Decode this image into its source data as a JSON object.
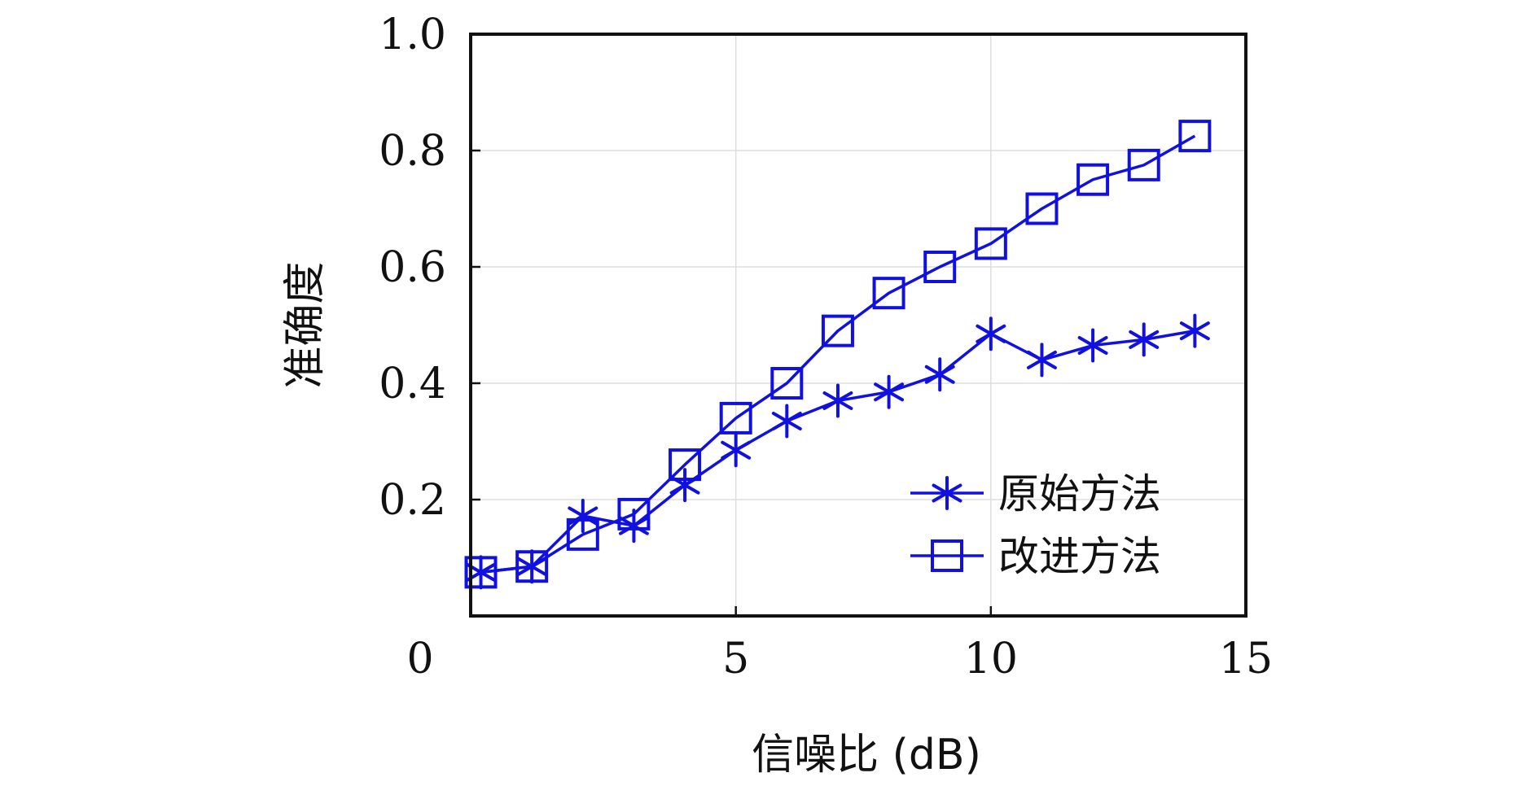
{
  "chart_data": {
    "type": "line",
    "title": "",
    "xlabel": "信噪比 (dB)",
    "ylabel": "准确度",
    "xlim": [
      0,
      15
    ],
    "ylim": [
      0,
      1.0
    ],
    "xticks": [
      "0",
      "5",
      "10",
      "15"
    ],
    "yticks": [
      "0.2",
      "0.4",
      "0.6",
      "0.8",
      "1.0"
    ],
    "grid": true,
    "legend_position": "bottom-right",
    "series": [
      {
        "name": "原始方法",
        "marker": "asterisk",
        "color": "#1010e0",
        "x": [
          0,
          1,
          2,
          3,
          4,
          5,
          6,
          7,
          8,
          9,
          10,
          11,
          12,
          13,
          14
        ],
        "y": [
          0.075,
          0.085,
          0.172,
          0.155,
          0.225,
          0.285,
          0.335,
          0.37,
          0.385,
          0.415,
          0.485,
          0.44,
          0.465,
          0.475,
          0.49
        ]
      },
      {
        "name": "改进方法",
        "marker": "square",
        "color": "#1010e0",
        "x": [
          0,
          1,
          2,
          3,
          4,
          5,
          6,
          7,
          8,
          9,
          10,
          11,
          12,
          13,
          14
        ],
        "y": [
          0.075,
          0.085,
          0.14,
          0.175,
          0.26,
          0.34,
          0.4,
          0.49,
          0.555,
          0.6,
          0.64,
          0.7,
          0.75,
          0.775,
          0.825
        ]
      }
    ]
  }
}
